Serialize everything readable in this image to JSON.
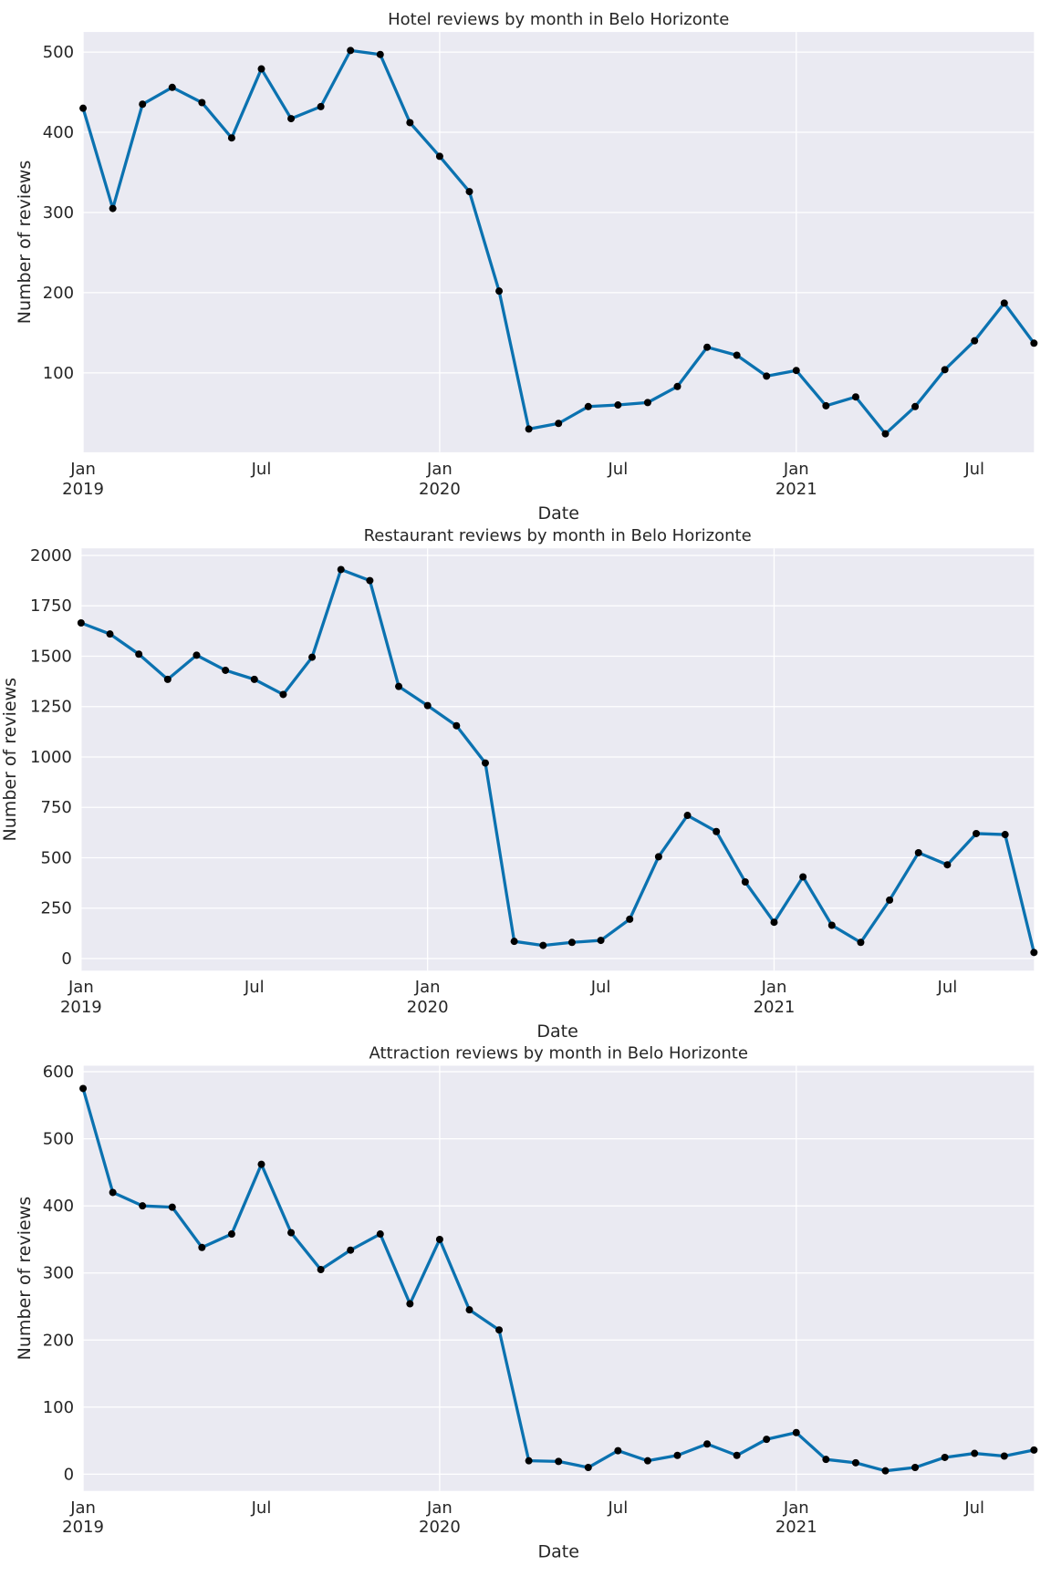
{
  "chart_data": [
    {
      "type": "line",
      "title": "Hotel reviews by month in Belo Horizonte",
      "xlabel": "Date",
      "ylabel": "Number of reviews",
      "x": [
        "2019-01",
        "2019-02",
        "2019-03",
        "2019-04",
        "2019-05",
        "2019-06",
        "2019-07",
        "2019-08",
        "2019-09",
        "2019-10",
        "2019-11",
        "2019-12",
        "2020-01",
        "2020-02",
        "2020-03",
        "2020-04",
        "2020-05",
        "2020-06",
        "2020-07",
        "2020-08",
        "2020-09",
        "2020-10",
        "2020-11",
        "2020-12",
        "2021-01",
        "2021-02",
        "2021-03",
        "2021-04",
        "2021-05",
        "2021-06",
        "2021-07",
        "2021-08",
        "2021-09"
      ],
      "series": [
        {
          "name": "Hotel",
          "color": "#0b72b0",
          "values": [
            430,
            305,
            435,
            456,
            437,
            393,
            479,
            417,
            432,
            502,
            497,
            412,
            370,
            326,
            202,
            30,
            37,
            58,
            60,
            63,
            83,
            132,
            122,
            96,
            103,
            59,
            70,
            24,
            58,
            104,
            140,
            187,
            137
          ]
        }
      ],
      "xlim": [
        "2019-01",
        "2021-09"
      ],
      "xticks": [
        {
          "value": "2019-01",
          "label": "Jan\n2019"
        },
        {
          "value": "2020-01",
          "label": "Jan\n2020"
        },
        {
          "value": "2021-01",
          "label": "Jan\n2021"
        }
      ],
      "xticks_minor": [
        {
          "value": "2019-07",
          "label": "Jul"
        },
        {
          "value": "2020-07",
          "label": "Jul"
        },
        {
          "value": "2021-07",
          "label": "Jul"
        }
      ],
      "ylim": [
        1,
        525
      ],
      "yticks": [
        100,
        200,
        300,
        400,
        500
      ],
      "grid": true
    },
    {
      "type": "line",
      "title": "Restaurant reviews by month in Belo Horizonte",
      "xlabel": "Date",
      "ylabel": "Number of reviews",
      "x": [
        "2019-01",
        "2019-02",
        "2019-03",
        "2019-04",
        "2019-05",
        "2019-06",
        "2019-07",
        "2019-08",
        "2019-09",
        "2019-10",
        "2019-11",
        "2019-12",
        "2020-01",
        "2020-02",
        "2020-03",
        "2020-04",
        "2020-05",
        "2020-06",
        "2020-07",
        "2020-08",
        "2020-09",
        "2020-10",
        "2020-11",
        "2020-12",
        "2021-01",
        "2021-02",
        "2021-03",
        "2021-04",
        "2021-05",
        "2021-06",
        "2021-07",
        "2021-08",
        "2021-09",
        "2021-10"
      ],
      "series": [
        {
          "name": "Restaurant",
          "color": "#0b72b0",
          "values": [
            1665,
            1610,
            1510,
            1385,
            1505,
            1430,
            1385,
            1310,
            1495,
            1930,
            1875,
            1350,
            1255,
            1155,
            970,
            85,
            65,
            80,
            90,
            195,
            505,
            710,
            630,
            380,
            180,
            405,
            165,
            80,
            290,
            525,
            465,
            620,
            615,
            30
          ]
        }
      ],
      "xlim": [
        "2019-01",
        "2021-10"
      ],
      "xticks": [
        {
          "value": "2019-01",
          "label": "Jan\n2019"
        },
        {
          "value": "2020-01",
          "label": "Jan\n2020"
        },
        {
          "value": "2021-01",
          "label": "Jan\n2021"
        }
      ],
      "xticks_minor": [
        {
          "value": "2019-07",
          "label": "Jul"
        },
        {
          "value": "2020-07",
          "label": "Jul"
        },
        {
          "value": "2021-07",
          "label": "Jul"
        }
      ],
      "ylim": [
        -60,
        2035
      ],
      "yticks": [
        0,
        250,
        500,
        750,
        1000,
        1250,
        1500,
        1750,
        2000
      ],
      "grid": true
    },
    {
      "type": "line",
      "title": "Attraction reviews by month in Belo Horizonte",
      "xlabel": "Date",
      "ylabel": "Number of reviews",
      "x": [
        "2019-01",
        "2019-02",
        "2019-03",
        "2019-04",
        "2019-05",
        "2019-06",
        "2019-07",
        "2019-08",
        "2019-09",
        "2019-10",
        "2019-11",
        "2019-12",
        "2020-01",
        "2020-02",
        "2020-03",
        "2020-04",
        "2020-05",
        "2020-06",
        "2020-07",
        "2020-08",
        "2020-09",
        "2020-10",
        "2020-11",
        "2020-12",
        "2021-01",
        "2021-02",
        "2021-03",
        "2021-04",
        "2021-05",
        "2021-06",
        "2021-07",
        "2021-08",
        "2021-09"
      ],
      "series": [
        {
          "name": "Attraction",
          "color": "#0b72b0",
          "values": [
            575,
            420,
            400,
            398,
            338,
            358,
            462,
            360,
            305,
            334,
            358,
            254,
            350,
            245,
            215,
            20,
            19,
            10,
            35,
            20,
            28,
            45,
            28,
            52,
            62,
            22,
            17,
            5,
            10,
            25,
            31,
            27,
            36
          ]
        }
      ],
      "xlim": [
        "2019-01",
        "2021-09"
      ],
      "xticks": [
        {
          "value": "2019-01",
          "label": "Jan\n2019"
        },
        {
          "value": "2020-01",
          "label": "Jan\n2020"
        },
        {
          "value": "2021-01",
          "label": "Jan\n2021"
        }
      ],
      "xticks_minor": [
        {
          "value": "2019-07",
          "label": "Jul"
        },
        {
          "value": "2020-07",
          "label": "Jul"
        },
        {
          "value": "2021-07",
          "label": "Jul"
        }
      ],
      "ylim": [
        -25,
        609
      ],
      "yticks": [
        0,
        100,
        200,
        300,
        400,
        500,
        600
      ],
      "grid": true
    }
  ]
}
